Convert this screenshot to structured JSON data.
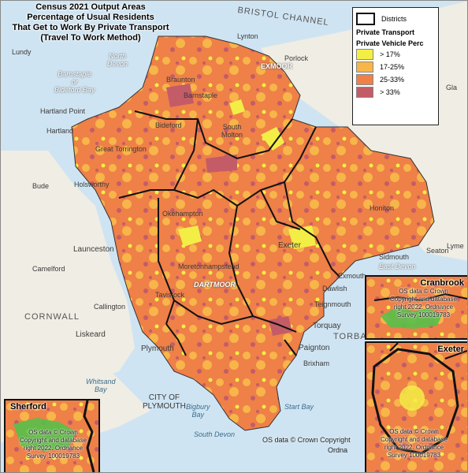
{
  "map": {
    "title_lines": [
      "Census 2021 Output Areas",
      "Percentage of Usual Residents",
      "That Get to Work By Private Transport",
      "(Travel To Work Method)"
    ],
    "copyright": "OS data © Crown Copyright",
    "copyright_tail": "Ordna",
    "places": {
      "bristol_channel": "BRISTOL CHANNEL",
      "lundy": "Lundy",
      "lynton": "Lynton",
      "exmoor": "EXMOOR",
      "porlock": "Porlock",
      "north_devon": "North\nDevon",
      "barnstaple_bay": "Barnstaple\nor\nBideford Bay",
      "braunton": "Braunton",
      "barnstaple": "Barnstaple",
      "hartland_point": "Hartland Point",
      "hartland": "Hartland",
      "bideford": "Bideford",
      "south_molton": "South\nMolton",
      "great_torrington": "Great Torrington",
      "bude": "Bude",
      "holsworthy": "Holsworthy",
      "okehampton": "Okehampton",
      "launceston": "Launceston",
      "camelford": "Camelford",
      "cornwall": "CORNWALL",
      "callington": "Callington",
      "liskeard": "Liskeard",
      "tavistock": "Tavistock",
      "dartmoor": "DARTMOOR",
      "moretonhampstead": "Moretonhampstead",
      "exeter": "Exeter",
      "honiton": "Honiton",
      "sidmouth": "Sidmouth",
      "east_devon": "East Devon",
      "exmouth": "Exmouth",
      "seaton": "Seaton",
      "lyme": "Lyme",
      "dawlish": "Dawlish",
      "teignmouth": "Teignmouth",
      "torquay": "Torquay",
      "torbay": "TORBAY",
      "paignton": "Paignton",
      "brixham": "Brixham",
      "plymouth": "Plymouth",
      "city_of_plymouth": "CITY OF\nPLYMOUTH",
      "whitsand_bay": "Whitsand\nBay",
      "bigbury_bay": "Bigbury\nBay",
      "south_devon": "South Devon",
      "start_bay": "Start Bay",
      "glastonbury": "Gla"
    }
  },
  "legend": {
    "districts_label": "Districts",
    "group_title": "Private Transport",
    "field_title": "Private Vehicle Perc",
    "classes": [
      {
        "label": "> 17%",
        "color": "#f3ee46"
      },
      {
        "label": "17-25%",
        "color": "#f7b54a"
      },
      {
        "label": "25-33%",
        "color": "#ee8048"
      },
      {
        "label": "> 33%",
        "color": "#c45c67"
      }
    ]
  },
  "insets": {
    "cranbrook": {
      "title": "Cranbrook",
      "copyright": "OS data © Crown\nCopyright and database\nright 2022. Ordnance\nSurvey 100019783"
    },
    "exeter": {
      "title": "Exeter",
      "copyright": "OS data © Crown\nCopyright and database\nright 2022. Ordnance\nSurvey 100019783"
    },
    "sherford": {
      "title": "Sherford",
      "copyright": "OS data © Crown\nCopyright and database\nright 2022. Ordnance\nSurvey 100019783"
    }
  },
  "colors": {
    "sea": "#cfe4f2",
    "land_outside": "#f0ede4",
    "district_border": "#111111"
  }
}
